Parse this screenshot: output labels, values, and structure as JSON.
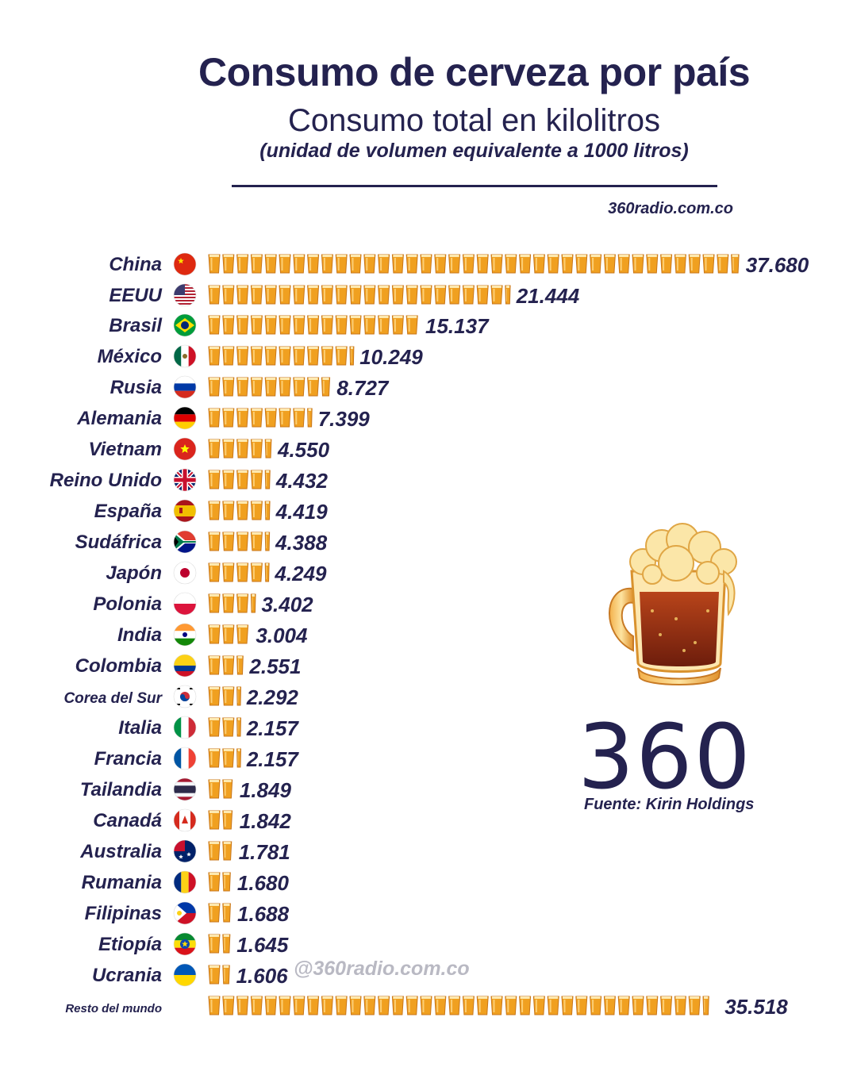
{
  "header": {
    "title": "Consumo de cerveza por país",
    "subtitle": "Consumo total en kilolitros",
    "subnote": "(unidad de volumen equivalente a 1000 litros)",
    "site": "360radio.com.co"
  },
  "watermark": "@360radio.com.co",
  "logo_text": "360",
  "source": "Fuente: Kirin Holdings",
  "icons": {
    "glass": "beer-glass-icon",
    "mug": "beer-mug-icon"
  },
  "colors": {
    "text": "#24224f",
    "beer": "#f0a020",
    "beer_dark": "#c8761a"
  },
  "chart_data": {
    "type": "bar",
    "orientation": "horizontal",
    "unit": "kilolitros",
    "categories": [
      "China",
      "EEUU",
      "Brasil",
      "México",
      "Rusia",
      "Alemania",
      "Vietnam",
      "Reino Unido",
      "España",
      "Sudáfrica",
      "Japón",
      "Polonia",
      "India",
      "Colombia",
      "Corea del Sur",
      "Italia",
      "Francia",
      "Tailandia",
      "Canadá",
      "Australia",
      "Rumania",
      "Filipinas",
      "Etiopía",
      "Ucrania",
      "Resto del mundo"
    ],
    "values": [
      37680,
      21444,
      15137,
      10249,
      8727,
      7399,
      4550,
      4432,
      4419,
      4388,
      4249,
      3402,
      3004,
      2551,
      2292,
      2157,
      2157,
      1849,
      1842,
      1781,
      1680,
      1688,
      1645,
      1606,
      35518
    ],
    "value_labels": [
      "37.680",
      "21.444",
      "15.137",
      "10.249",
      "8.727",
      "7.399",
      "4.550",
      "4.432",
      "4.419",
      "4.388",
      "4.249",
      "3.402",
      "3.004",
      "2.551",
      "2.292",
      "2.157",
      "2.157",
      "1.849",
      "1.842",
      "1.781",
      "1.680",
      "1.688",
      "1.645",
      "1.606",
      "35.518"
    ],
    "flags": [
      "china-flag-icon",
      "usa-flag-icon",
      "brazil-flag-icon",
      "mexico-flag-icon",
      "russia-flag-icon",
      "germany-flag-icon",
      "vietnam-flag-icon",
      "uk-flag-icon",
      "spain-flag-icon",
      "south-africa-flag-icon",
      "japan-flag-icon",
      "poland-flag-icon",
      "india-flag-icon",
      "colombia-flag-icon",
      "south-korea-flag-icon",
      "italy-flag-icon",
      "france-flag-icon",
      "thailand-flag-icon",
      "canada-flag-icon",
      "australia-flag-icon",
      "romania-flag-icon",
      "philippines-flag-icon",
      "ethiopia-flag-icon",
      "ukraine-flag-icon",
      ""
    ],
    "mark": "beer-glass-icon",
    "legend": "none",
    "grid": false
  }
}
